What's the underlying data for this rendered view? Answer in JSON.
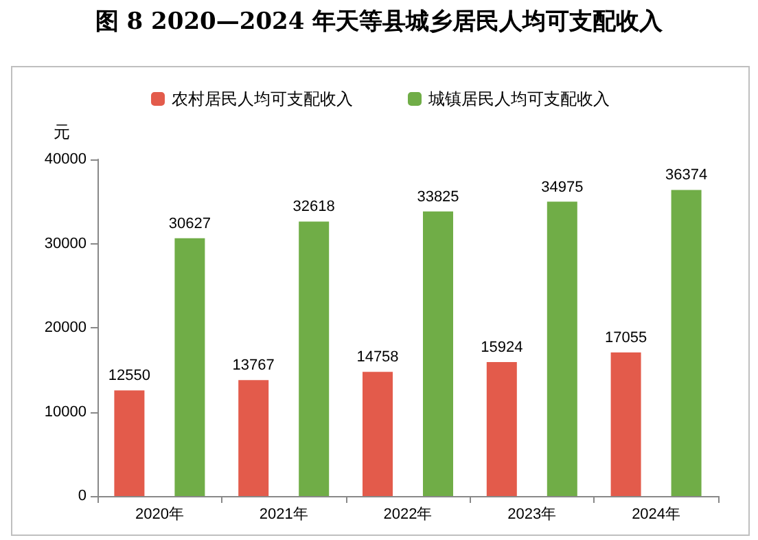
{
  "chart_data": {
    "type": "bar",
    "title": "图 8 2020—2024 年天等县城乡居民人均可支配收入",
    "ylabel": "元",
    "categories": [
      "2020年",
      "2021年",
      "2022年",
      "2023年",
      "2024年"
    ],
    "series": [
      {
        "name": "农村居民人均可支配收入",
        "color": "#e35b4b",
        "values": [
          12550,
          13767,
          14758,
          15924,
          17055
        ]
      },
      {
        "name": "城镇居民人均可支配收入",
        "color": "#70ad47",
        "values": [
          30627,
          32618,
          33825,
          34975,
          36374
        ]
      }
    ],
    "ylim": [
      0,
      40000
    ],
    "yticks": [
      0,
      10000,
      20000,
      30000,
      40000
    ],
    "grid": false,
    "legend": "top",
    "data_labels": true
  }
}
